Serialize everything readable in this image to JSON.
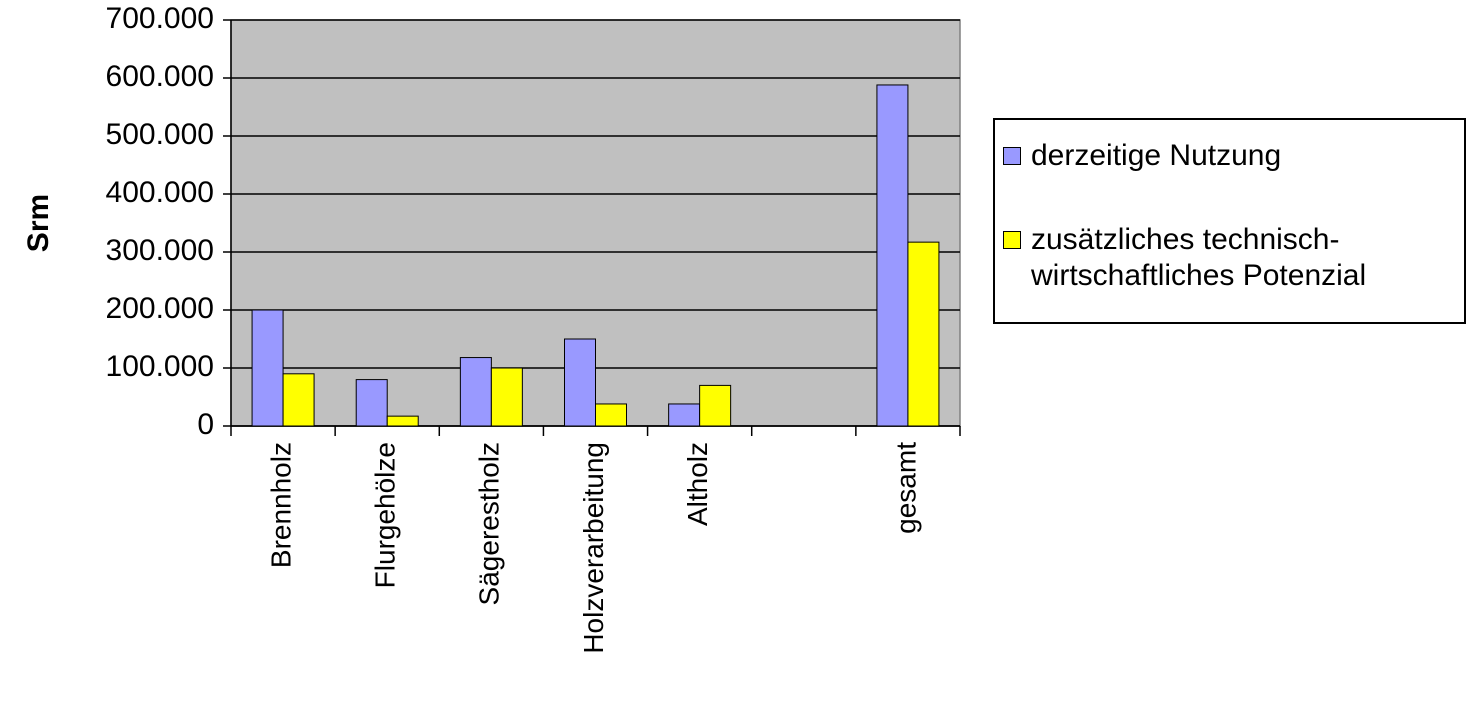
{
  "chart_data": {
    "type": "bar",
    "y_label": "Srm",
    "categories": [
      "Brennholz",
      "Flurgehölze",
      "Sägerestholz",
      "Holzverarbeitung",
      "Altholz",
      null,
      "gesamt"
    ],
    "series": [
      {
        "name": "derzeitige Nutzung",
        "color": "#9999ff",
        "values": [
          200000,
          80000,
          118000,
          150000,
          38000,
          null,
          588000
        ]
      },
      {
        "name": "zusätzliches technisch-wirtschaftliches Potenzial",
        "color": "#ffff00",
        "values": [
          90000,
          17000,
          100000,
          38000,
          70000,
          null,
          317000
        ]
      }
    ],
    "ylim": [
      0,
      700000
    ],
    "yticks": [
      0,
      {
        "value": 100000,
        "label": "100.000"
      },
      {
        "value": 200000,
        "label": "200.000"
      },
      {
        "value": 300000,
        "label": "300.000"
      },
      {
        "value": 400000,
        "label": "400.000"
      },
      {
        "value": 500000,
        "label": "500.000"
      },
      {
        "value": 600000,
        "label": "600.000"
      },
      {
        "value": 700000,
        "label": "700.000"
      }
    ],
    "grid": true,
    "plot_background": "#c0c0c0",
    "legend": "right"
  }
}
